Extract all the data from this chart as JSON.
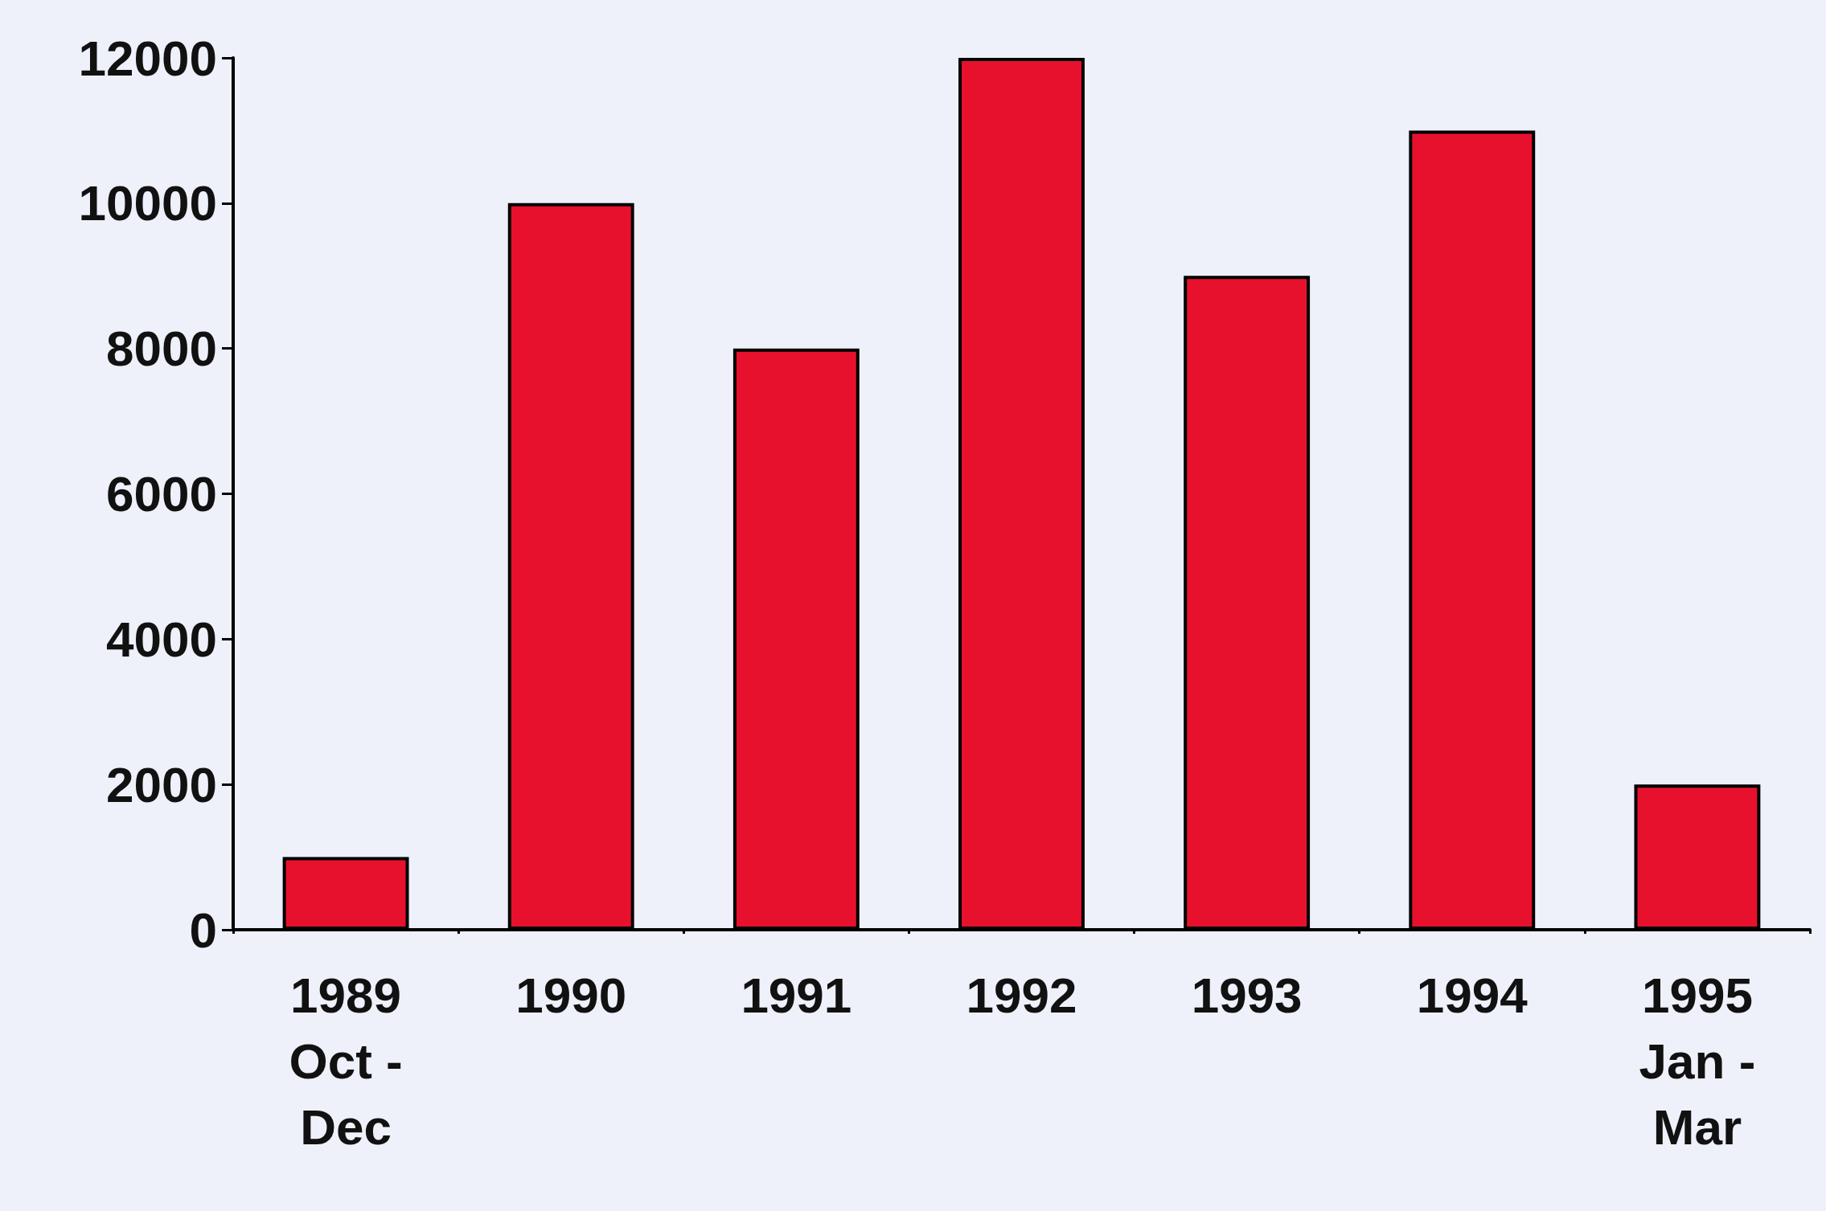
{
  "chart_data": {
    "type": "bar",
    "categories": [
      "1989\nOct -\nDec",
      "1990",
      "1991",
      "1992",
      "1993",
      "1994",
      "1995\nJan -\nMar"
    ],
    "values": [
      1000,
      10000,
      8000,
      12000,
      9000,
      11000,
      2000
    ],
    "color": "#e8112d",
    "ylim": [
      0,
      12000
    ],
    "yticks": [
      0,
      2000,
      4000,
      6000,
      8000,
      10000,
      12000
    ],
    "grid": false
  }
}
